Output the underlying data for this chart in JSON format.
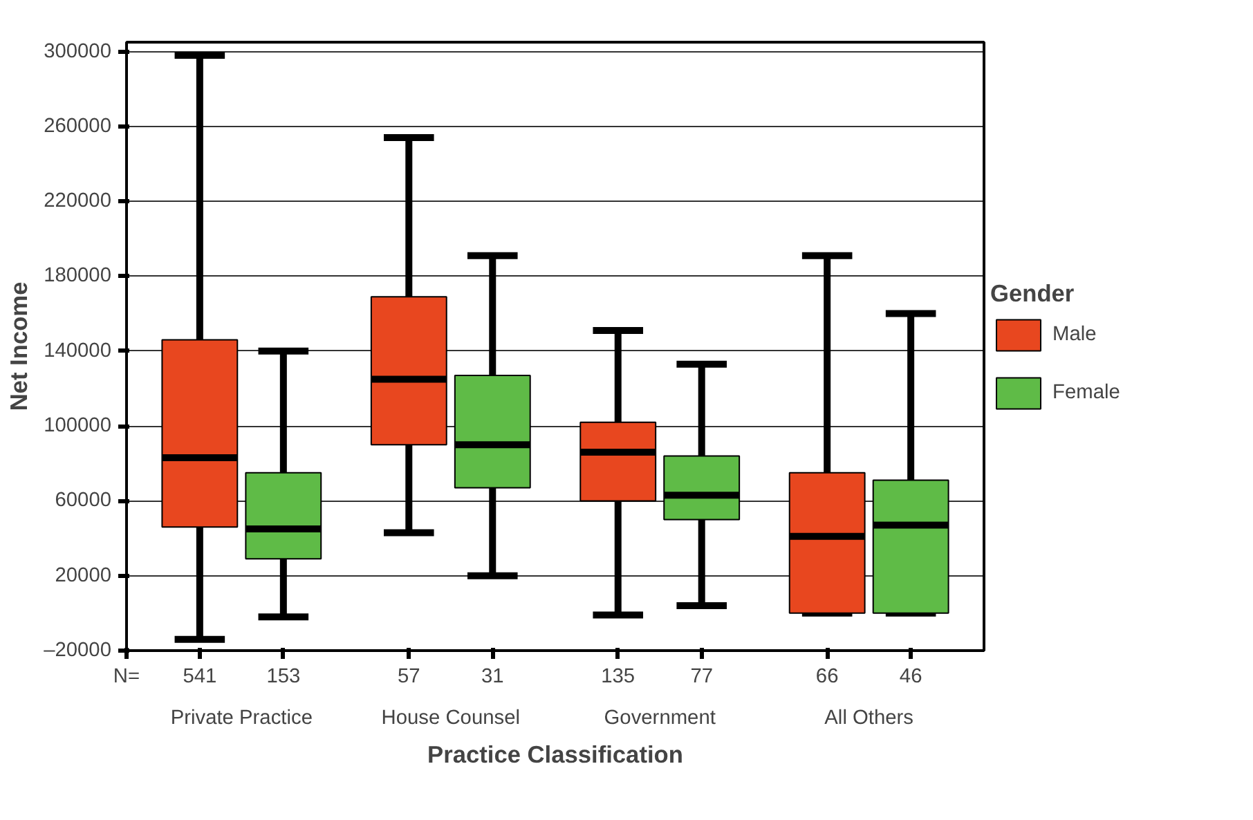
{
  "chart_data": {
    "type": "box",
    "xlabel": "Practice Classification",
    "ylabel": "Net Income",
    "legend_title": "Gender",
    "categories": [
      "Private Practice",
      "House Counsel",
      "Government",
      "All Others"
    ],
    "ylim": [
      -20000,
      305000
    ],
    "yticks": [
      {
        "value": -20000,
        "label": "–20000"
      },
      20000,
      60000,
      100000,
      140000,
      180000,
      220000,
      260000,
      300000
    ],
    "grid": "y",
    "legend": "right",
    "series": [
      {
        "name": "Male",
        "color": "#e8471f",
        "boxes": [
          {
            "low": -14000,
            "q1": 46000,
            "median": 83000,
            "q3": 146000,
            "high": 298000
          },
          {
            "low": 43000,
            "q1": 90000,
            "median": 125000,
            "q3": 169000,
            "high": 254000
          },
          {
            "low": -1000,
            "q1": 60000,
            "median": 86000,
            "q3": 102000,
            "high": 151000
          },
          {
            "low": 0,
            "q1": 0,
            "median": 41000,
            "q3": 75000,
            "high": 191000
          }
        ]
      },
      {
        "name": "Female",
        "color": "#5fbb47",
        "boxes": [
          {
            "low": -2000,
            "q1": 29000,
            "median": 45000,
            "q3": 75000,
            "high": 140000
          },
          {
            "low": 20000,
            "q1": 67000,
            "median": 90000,
            "q3": 127000,
            "high": 191000
          },
          {
            "low": 4000,
            "q1": 50000,
            "median": 63000,
            "q3": 84000,
            "high": 133000
          },
          {
            "low": 0,
            "q1": 0,
            "median": 47000,
            "q3": 71000,
            "high": 160000
          }
        ]
      }
    ],
    "annotations": [
      "N=",
      "541",
      "153",
      "57",
      "31",
      "135",
      "77",
      "66",
      "46"
    ]
  }
}
